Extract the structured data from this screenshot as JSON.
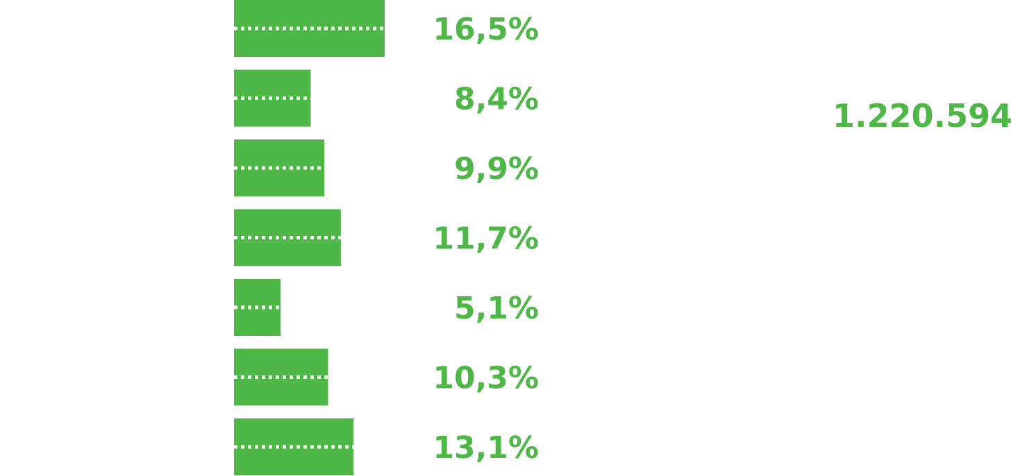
{
  "chart_data": {
    "type": "bar",
    "orientation": "horizontal",
    "values": [
      16.5,
      8.4,
      9.9,
      11.7,
      5.1,
      10.3,
      13.1
    ],
    "value_labels": [
      "16,5%",
      "8,4%",
      "9,9%",
      "11,7%",
      "5,1%",
      "10,3%",
      "13,1%"
    ],
    "total": "1.220.594",
    "xlim": [
      0,
      16.5
    ],
    "grid": false,
    "legend": "none"
  },
  "colors": {
    "bar": "#4fb748",
    "text": "#4fb748",
    "dots": "#ffffff",
    "background": "#ffffff"
  }
}
